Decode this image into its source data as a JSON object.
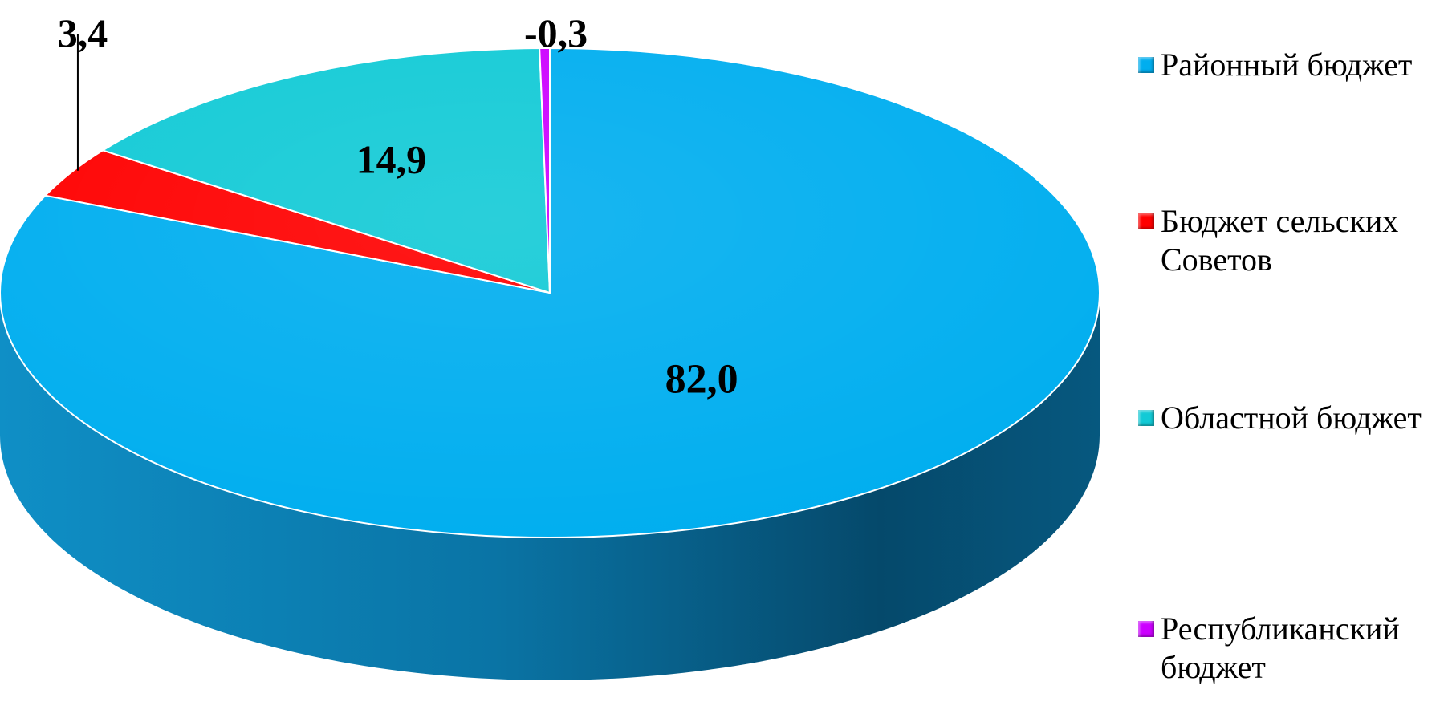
{
  "chart_data": {
    "type": "pie",
    "style": "3d",
    "categories": [
      "Районный бюджет",
      "Бюджет сельских Советов",
      "Областной бюджет",
      "Республиканский бюджет"
    ],
    "values": [
      82.0,
      3.4,
      14.9,
      -0.3
    ],
    "data_labels": [
      "82,0",
      "3,4",
      "14,9",
      "-0,3"
    ],
    "colors": [
      "#00AEEF",
      "#FF0000",
      "#12CAD6",
      "#CC00FF"
    ],
    "legend_position": "right",
    "title": ""
  },
  "legend": {
    "items": [
      {
        "lines": [
          "Районный бюджет"
        ],
        "color": "#00AEEF",
        "icon": "square-marker"
      },
      {
        "lines": [
          "Бюджет сельских",
          "Советов"
        ],
        "color": "#FF0000",
        "icon": "square-marker"
      },
      {
        "lines": [
          "Областной бюджет"
        ],
        "color": "#12CAD6",
        "icon": "square-marker"
      },
      {
        "lines": [
          "Республиканский",
          "бюджет"
        ],
        "color": "#CC00FF",
        "icon": "square-marker"
      }
    ]
  }
}
